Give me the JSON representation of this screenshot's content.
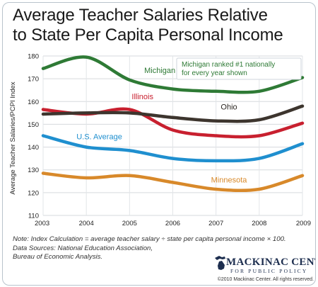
{
  "title_line1": "Average Teacher Salaries Relative",
  "title_line2": "to State Per Capita Personal Income",
  "chart_data": {
    "type": "line",
    "title": "Average Teacher Salaries Relative to State Per Capita Personal Income",
    "ylabel": "Average Teacher Salaries/PCPI Index",
    "xlabel": "",
    "x": [
      2003,
      2004,
      2005,
      2006,
      2007,
      2008,
      2009
    ],
    "ylim": [
      110,
      180
    ],
    "yticks": [
      110,
      120,
      130,
      140,
      150,
      160,
      170,
      180
    ],
    "grid": true,
    "series": [
      {
        "name": "Michigan",
        "color": "#2e7a35",
        "values": [
          174.5,
          179.5,
          169.5,
          165.5,
          164.5,
          164.5,
          170.5
        ]
      },
      {
        "name": "Illinois",
        "color": "#c8202f",
        "values": [
          156.5,
          154.5,
          156.5,
          147.5,
          145,
          145,
          150.5
        ]
      },
      {
        "name": "Ohio",
        "color": "#3d352e",
        "values": [
          154.5,
          155,
          155,
          153,
          151.5,
          152,
          158
        ]
      },
      {
        "name": "U.S. Average",
        "color": "#1f8fcf",
        "values": [
          145,
          140,
          138.5,
          135,
          134,
          135,
          141.5
        ]
      },
      {
        "name": "Minnesota",
        "color": "#d8892a",
        "values": [
          128.5,
          126.5,
          127.5,
          124.5,
          121.5,
          121.5,
          127.5
        ]
      }
    ],
    "annotation": "Michigan ranked #1 nationally for every year shown"
  },
  "annotation_line1": "Michigan ranked #1 nationally",
  "annotation_line2": "for every year shown",
  "notes": {
    "line1": "Note: Index Calculation = average teacher salary ÷ state per capita personal income × 100.",
    "line2": "Data Sources: National Education Association,",
    "line3": "Bureau of Economic Analysis."
  },
  "logo": {
    "main": "MACKINAC CENTER",
    "sub": "FOR PUBLIC POLICY",
    "copyright": "©2010 Mackinac Center. All rights reserved."
  }
}
